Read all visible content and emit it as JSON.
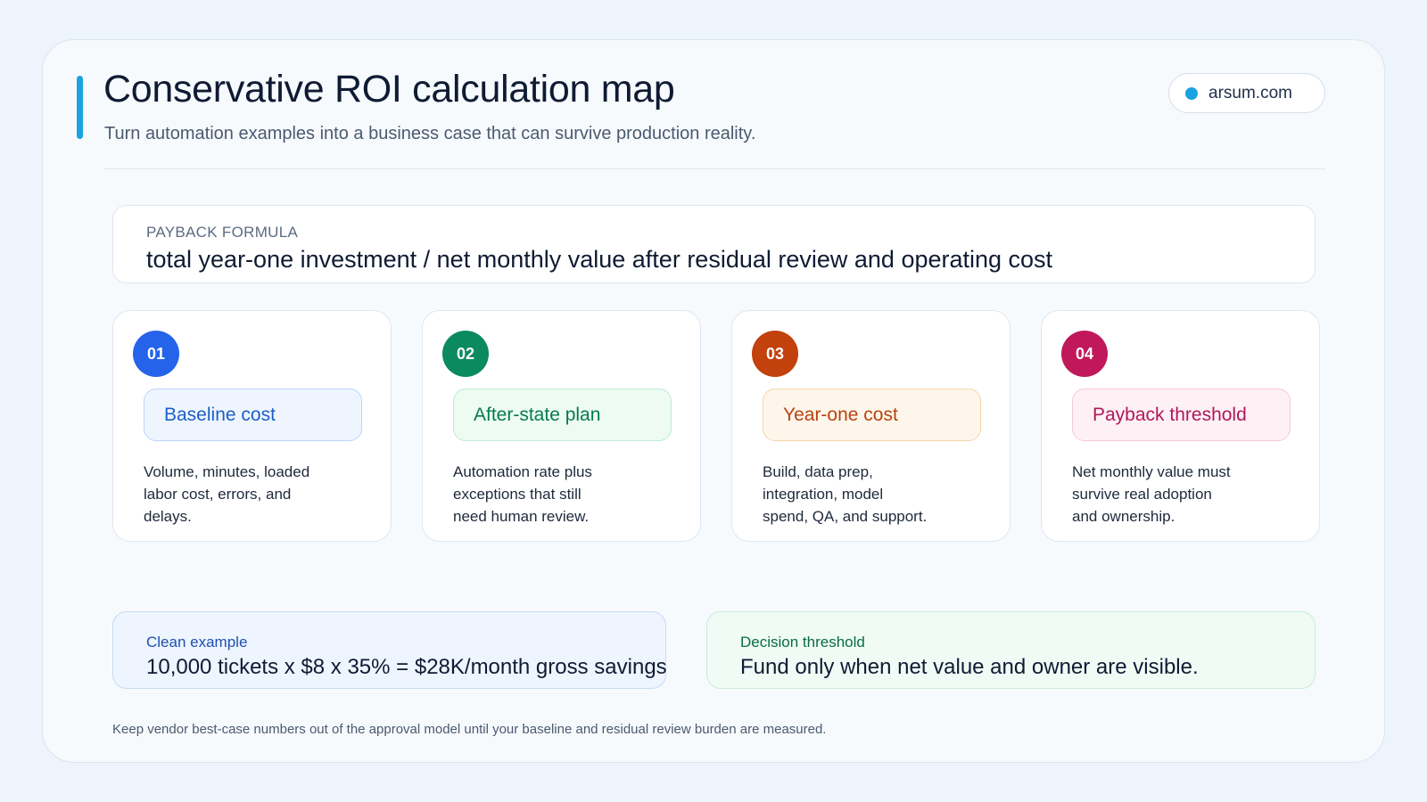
{
  "header": {
    "title": "Conservative ROI calculation map",
    "subtitle": "Turn automation examples into a business case that can survive production reality.",
    "site": "arsum.com"
  },
  "formula": {
    "label": "PAYBACK FORMULA",
    "text": "total year-one investment / net monthly value after residual review and operating cost"
  },
  "steps": [
    {
      "number": "01",
      "title": "Baseline cost",
      "lines": [
        "Volume, minutes, loaded",
        "labor cost, errors, and",
        "delays."
      ],
      "colors": {
        "circle": "#2563eb",
        "pill_bg": "#eef5ff",
        "pill_border": "#bcd5f5",
        "pill_text": "#1d5fc4"
      }
    },
    {
      "number": "02",
      "title": "After-state plan",
      "lines": [
        "Automation rate plus",
        "exceptions that still",
        "need human review."
      ],
      "colors": {
        "circle": "#0b8a5f",
        "pill_bg": "#edfbf3",
        "pill_border": "#bfe9d3",
        "pill_text": "#067a50"
      }
    },
    {
      "number": "03",
      "title": "Year-one cost",
      "lines": [
        "Build, data prep,",
        "integration, model",
        "spend, QA, and support."
      ],
      "colors": {
        "circle": "#c2410c",
        "pill_bg": "#fff6eb",
        "pill_border": "#f5d4ad",
        "pill_text": "#b8430f"
      }
    },
    {
      "number": "04",
      "title": "Payback threshold",
      "lines": [
        "Net monthly value must",
        "survive real adoption",
        "and ownership."
      ],
      "colors": {
        "circle": "#c0185a",
        "pill_bg": "#fef1f6",
        "pill_border": "#f4c9da",
        "pill_text": "#b3175a"
      }
    }
  ],
  "clean_example": {
    "label": "Clean example",
    "text": "10,000 tickets x $8 x 35% = $28K/month gross savings",
    "colors": {
      "bg": "#eef5ff",
      "border": "#c6daf3",
      "label": "#1d4fb0"
    }
  },
  "decision": {
    "label": "Decision threshold",
    "text": "Fund only when net value and owner are visible.",
    "colors": {
      "bg": "#effbf4",
      "border": "#c7ecd7",
      "label": "#0a6b48"
    }
  },
  "footnote": "Keep vendor best-case numbers out of the approval model until your baseline and residual review burden are measured."
}
